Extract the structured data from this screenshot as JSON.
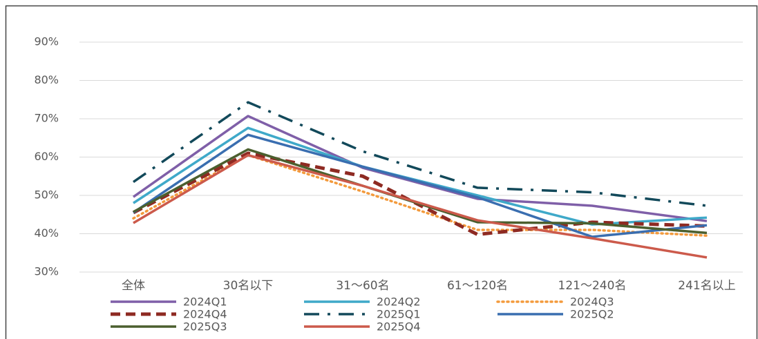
{
  "chart_data": {
    "type": "line",
    "categories": [
      "全体",
      "30名以下",
      "31〜60名",
      "61〜120名",
      "121〜240名",
      "241名以上"
    ],
    "series": [
      {
        "name": "2024Q1",
        "color": "#7f5fa8",
        "style": "solid",
        "values": [
          49.6,
          70.7,
          57.2,
          49.1,
          47.3,
          43.3
        ]
      },
      {
        "name": "2024Q2",
        "color": "#3fa9c9",
        "style": "solid",
        "values": [
          48,
          67.6,
          57.5,
          50,
          42.4,
          44.2
        ]
      },
      {
        "name": "2024Q3",
        "color": "#f39a3c",
        "style": "dotted",
        "values": [
          44,
          60.5,
          51,
          41,
          41,
          39.5
        ]
      },
      {
        "name": "2024Q4",
        "color": "#8e2a22",
        "style": "dashed",
        "values": [
          45.5,
          61,
          55,
          39.8,
          43,
          42
        ]
      },
      {
        "name": "2025Q1",
        "color": "#12495a",
        "style": "dashdot",
        "values": [
          53.5,
          74.3,
          61.5,
          52,
          50.8,
          47.3
        ]
      },
      {
        "name": "2025Q2",
        "color": "#3a6eb0",
        "style": "solid",
        "values": [
          45.5,
          65.8,
          57.5,
          49.5,
          39.2,
          42.2
        ]
      },
      {
        "name": "2025Q3",
        "color": "#4b5f2e",
        "style": "solid",
        "values": [
          45.7,
          62,
          52.5,
          43,
          42.7,
          40.2
        ]
      },
      {
        "name": "2025Q4",
        "color": "#cc5a4b",
        "style": "solid",
        "values": [
          42.8,
          60.5,
          52.5,
          43.5,
          38.8,
          33.8
        ]
      }
    ],
    "ylim": [
      30,
      90
    ],
    "yticks": [
      {
        "value": 30,
        "label": "30%"
      },
      {
        "value": 40,
        "label": "40%"
      },
      {
        "value": 50,
        "label": "50%"
      },
      {
        "value": 60,
        "label": "60%"
      },
      {
        "value": 70,
        "label": "70%"
      },
      {
        "value": 80,
        "label": "80%"
      },
      {
        "value": 90,
        "label": "90%"
      }
    ],
    "grid": true,
    "legend": "bottom"
  }
}
